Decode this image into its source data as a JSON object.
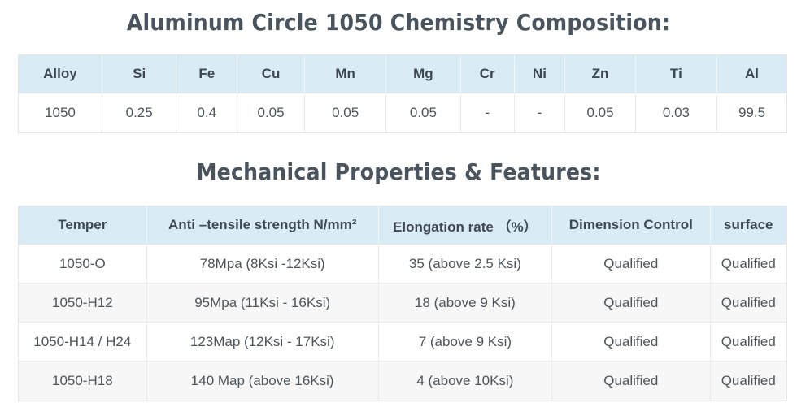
{
  "titles": {
    "chemistry": "Aluminum Circle 1050 Chemistry Composition:",
    "mechanical": "Mechanical Properties & Features:"
  },
  "colors": {
    "header_bg": "#d9ecf5",
    "stripe_bg": "#f7f7f7",
    "border": "#e4e4e4",
    "title_text": "#4a545e",
    "header_text": "#3d4852",
    "cell_text": "#4d555c"
  },
  "chemistry_table": {
    "headers": [
      "Alloy",
      "Si",
      "Fe",
      "Cu",
      "Mn",
      "Mg",
      "Cr",
      "Ni",
      "Zn",
      "Ti",
      "Al"
    ],
    "rows": [
      [
        "1050",
        "0.25",
        "0.4",
        "0.05",
        "0.05",
        "0.05",
        "-",
        "-",
        "0.05",
        "0.03",
        "99.5"
      ]
    ]
  },
  "mechanical_table": {
    "headers": [
      "Temper",
      "Anti –tensile strength N/mm²",
      "Elongation rate （%）",
      "Dimension Control",
      "surface"
    ],
    "rows": [
      [
        "1050-O",
        "78Mpa (8Ksi -12Ksi)",
        "35 (above 2.5 Ksi)",
        "Qualified",
        "Qualified"
      ],
      [
        "1050-H12",
        "95Mpa (11Ksi - 16Ksi)",
        "18 (above 9 Ksi)",
        "Qualified",
        "Qualified"
      ],
      [
        "1050-H14 / H24",
        "123Map (12Ksi - 17Ksi)",
        "7 (above 9 Ksi)",
        "Qualified",
        "Qualified"
      ],
      [
        "1050-H18",
        "140 Map (above 16Ksi)",
        "4 (above 10Ksi)",
        "Qualified",
        "Qualified"
      ]
    ]
  }
}
